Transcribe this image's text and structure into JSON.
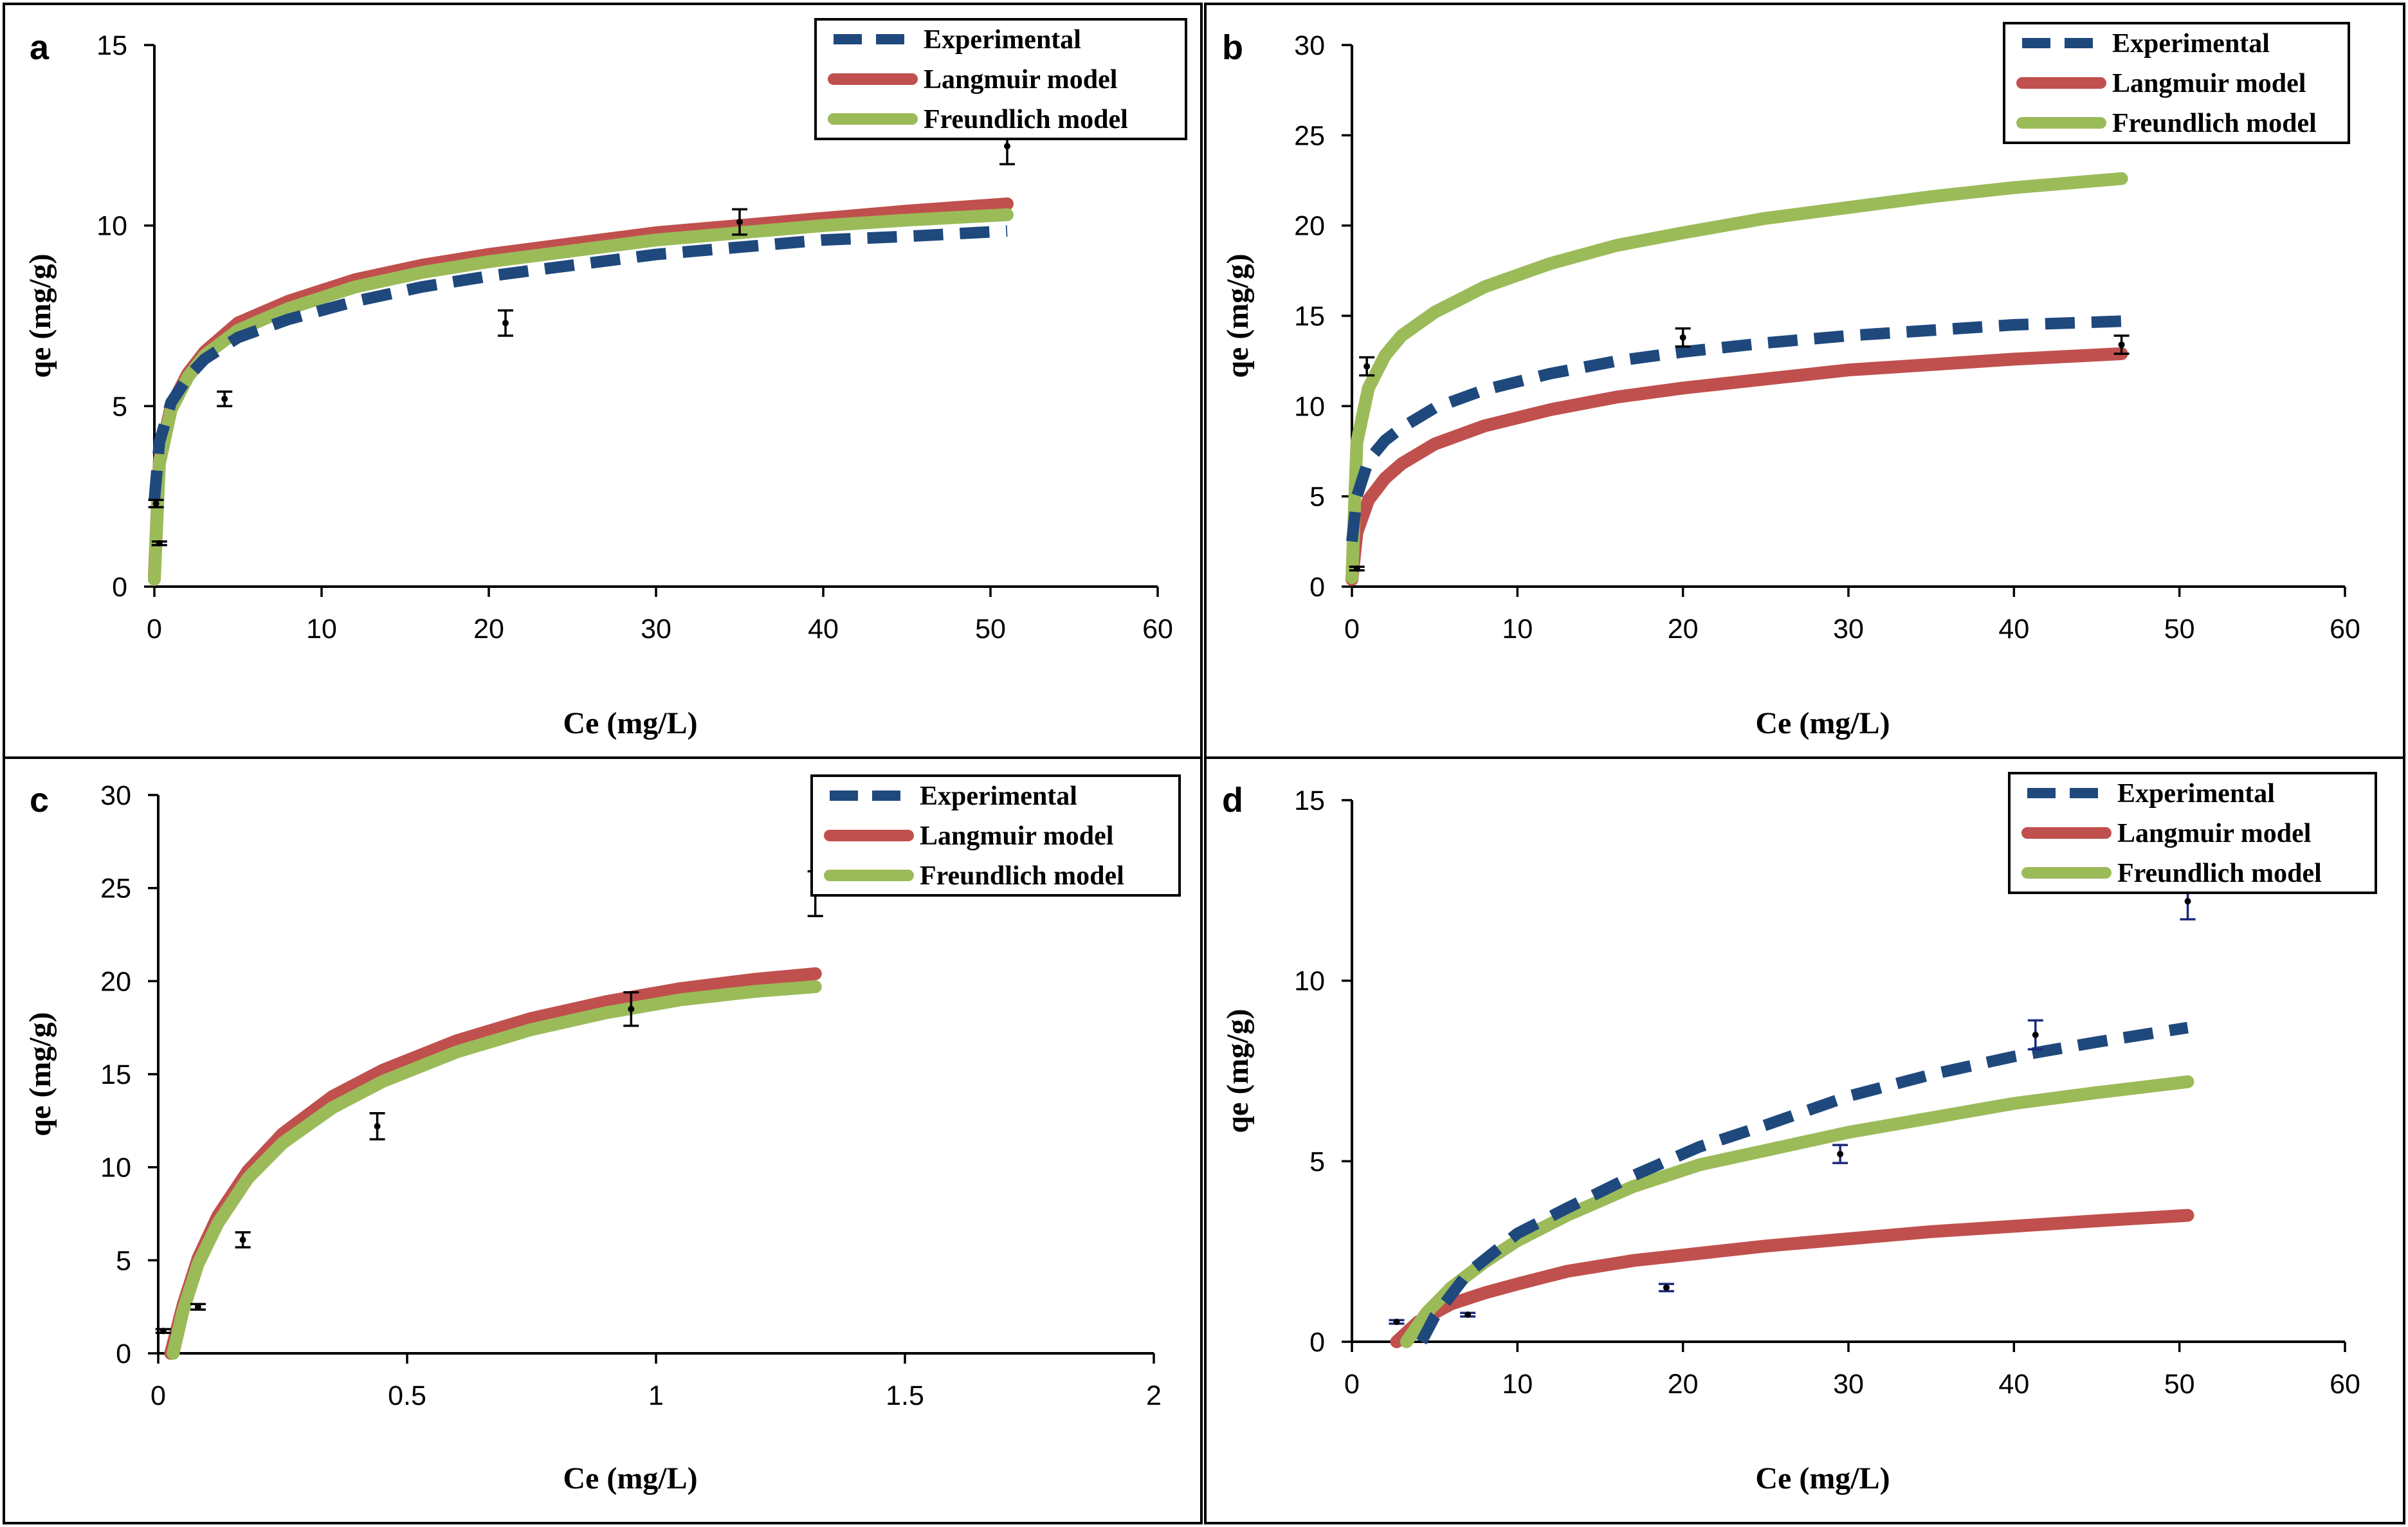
{
  "legend": {
    "experimental": "Experimental",
    "langmuir": "Langmuir model",
    "freundlich": "Freundlich model"
  },
  "colors": {
    "experimental": "#1f497d",
    "langmuir": "#c0504d",
    "freundlich": "#9bbb59",
    "points": "#000000"
  },
  "chart_data": [
    {
      "id": "a",
      "type": "line",
      "panel_label": "a",
      "xlabel": "Ce (mg/L)",
      "ylabel": "qe (mg/g)",
      "xlim": [
        0,
        60
      ],
      "ylim": [
        0,
        15
      ],
      "xticks": [
        0,
        10,
        20,
        30,
        40,
        50,
        60
      ],
      "yticks": [
        0,
        5,
        10,
        15
      ],
      "legend_position": "top-right",
      "series": [
        {
          "key": "experimental",
          "name": "Experimental",
          "style": "dashed",
          "x": [
            0,
            0.3,
            1,
            2,
            3,
            5,
            8,
            12,
            16,
            20,
            25,
            30,
            35,
            40,
            45,
            51
          ],
          "y": [
            2.4,
            4.0,
            5.1,
            5.8,
            6.3,
            6.9,
            7.4,
            7.9,
            8.3,
            8.6,
            8.9,
            9.2,
            9.4,
            9.6,
            9.7,
            9.85
          ]
        },
        {
          "key": "langmuir",
          "name": "Langmuir model",
          "style": "solid",
          "x": [
            0,
            0.3,
            1,
            2,
            3,
            5,
            8,
            12,
            16,
            20,
            25,
            30,
            35,
            40,
            45,
            51
          ],
          "y": [
            0.3,
            3.5,
            5.0,
            5.9,
            6.5,
            7.3,
            7.9,
            8.5,
            8.9,
            9.2,
            9.5,
            9.8,
            10.0,
            10.2,
            10.4,
            10.6
          ]
        },
        {
          "key": "freundlich",
          "name": "Freundlich model",
          "style": "solid",
          "x": [
            0,
            0.3,
            1,
            2,
            3,
            5,
            8,
            12,
            16,
            20,
            25,
            30,
            35,
            40,
            45,
            51
          ],
          "y": [
            0.2,
            3.4,
            4.9,
            5.8,
            6.4,
            7.1,
            7.7,
            8.3,
            8.7,
            9.0,
            9.3,
            9.6,
            9.8,
            10.0,
            10.15,
            10.3
          ]
        }
      ],
      "points": [
        {
          "x": 0.1,
          "y": 2.3,
          "err": 0.1
        },
        {
          "x": 0.3,
          "y": 1.2,
          "err": 0.05
        },
        {
          "x": 4.2,
          "y": 5.2,
          "err": 0.2
        },
        {
          "x": 21,
          "y": 7.3,
          "err": 0.35
        },
        {
          "x": 35,
          "y": 10.1,
          "err": 0.35
        },
        {
          "x": 51,
          "y": 12.2,
          "err": 0.5
        }
      ]
    },
    {
      "id": "b",
      "type": "line",
      "panel_label": "b",
      "xlabel": "Ce (mg/L)",
      "ylabel": "qe (mg/g)",
      "xlim": [
        0,
        60
      ],
      "ylim": [
        0,
        30
      ],
      "xticks": [
        0,
        10,
        20,
        30,
        40,
        50,
        60
      ],
      "yticks": [
        0,
        5,
        10,
        15,
        20,
        25,
        30
      ],
      "legend_position": "top-right",
      "series": [
        {
          "key": "experimental",
          "name": "Experimental",
          "style": "dashed",
          "x": [
            0,
            0.3,
            1,
            2,
            3,
            5,
            8,
            12,
            16,
            20,
            25,
            30,
            35,
            40,
            46.5
          ],
          "y": [
            2.5,
            5.0,
            7.0,
            8.1,
            8.8,
            9.9,
            10.9,
            11.8,
            12.5,
            13.0,
            13.5,
            13.9,
            14.2,
            14.5,
            14.7
          ]
        },
        {
          "key": "langmuir",
          "name": "Langmuir model",
          "style": "solid",
          "x": [
            0,
            0.3,
            1,
            2,
            3,
            5,
            8,
            12,
            16,
            20,
            25,
            30,
            35,
            40,
            46.5
          ],
          "y": [
            0.4,
            3.0,
            4.8,
            6.0,
            6.8,
            7.9,
            8.9,
            9.8,
            10.5,
            11.0,
            11.5,
            12.0,
            12.3,
            12.6,
            12.9
          ]
        },
        {
          "key": "freundlich",
          "name": "Freundlich model",
          "style": "solid",
          "x": [
            0,
            0.3,
            1,
            2,
            3,
            5,
            8,
            12,
            16,
            20,
            25,
            30,
            35,
            40,
            46.5
          ],
          "y": [
            0.5,
            8.0,
            11.0,
            12.8,
            13.9,
            15.2,
            16.6,
            17.9,
            18.9,
            19.6,
            20.4,
            21.0,
            21.6,
            22.1,
            22.6
          ]
        }
      ],
      "points": [
        {
          "x": 0.3,
          "y": 1.0,
          "err": 0.1
        },
        {
          "x": 0.9,
          "y": 12.2,
          "err": 0.5
        },
        {
          "x": 20,
          "y": 13.8,
          "err": 0.5
        },
        {
          "x": 46.5,
          "y": 13.4,
          "err": 0.5
        }
      ]
    },
    {
      "id": "c",
      "type": "line",
      "panel_label": "c",
      "xlabel": "Ce (mg/L)",
      "ylabel": "qe (mg/g)",
      "xlim": [
        0,
        2
      ],
      "ylim": [
        0,
        30
      ],
      "xticks": [
        0,
        0.5,
        1,
        1.5,
        2
      ],
      "yticks": [
        0,
        5,
        10,
        15,
        20,
        25,
        30
      ],
      "legend_position": "top-right",
      "series": [
        {
          "key": "langmuir",
          "name": "Langmuir model",
          "style": "solid",
          "x": [
            0.025,
            0.05,
            0.08,
            0.12,
            0.18,
            0.25,
            0.35,
            0.45,
            0.6,
            0.75,
            0.9,
            1.05,
            1.2,
            1.32
          ],
          "y": [
            0,
            2.6,
            5.1,
            7.4,
            9.8,
            11.8,
            13.8,
            15.2,
            16.8,
            18.0,
            18.9,
            19.6,
            20.1,
            20.4
          ]
        },
        {
          "key": "freundlich",
          "name": "Freundlich model",
          "style": "solid",
          "x": [
            0.03,
            0.05,
            0.08,
            0.12,
            0.18,
            0.25,
            0.35,
            0.45,
            0.6,
            0.75,
            0.9,
            1.05,
            1.2,
            1.32
          ],
          "y": [
            0,
            2.3,
            4.8,
            7.0,
            9.4,
            11.3,
            13.2,
            14.6,
            16.2,
            17.4,
            18.3,
            19.0,
            19.45,
            19.7
          ]
        }
      ],
      "points": [
        {
          "x": 0.01,
          "y": 1.2,
          "err": 0.1
        },
        {
          "x": 0.08,
          "y": 2.5,
          "err": 0.15
        },
        {
          "x": 0.17,
          "y": 6.1,
          "err": 0.4
        },
        {
          "x": 0.44,
          "y": 12.2,
          "err": 0.7
        },
        {
          "x": 0.95,
          "y": 18.5,
          "err": 0.9
        },
        {
          "x": 1.32,
          "y": 24.7,
          "err": 1.2
        }
      ]
    },
    {
      "id": "d",
      "type": "line",
      "panel_label": "d",
      "xlabel": "Ce (mg/L)",
      "ylabel": "qe (mg/g)",
      "xlim": [
        0,
        60
      ],
      "ylim": [
        0,
        15
      ],
      "xticks": [
        0,
        10,
        20,
        30,
        40,
        50,
        60
      ],
      "yticks": [
        0,
        5,
        10,
        15
      ],
      "legend_position": "top-right",
      "series": [
        {
          "key": "experimental",
          "name": "Experimental",
          "style": "dashed",
          "x": [
            4.2,
            5,
            7,
            10,
            13,
            17,
            21,
            25,
            30,
            35,
            40,
            45,
            50.5
          ],
          "y": [
            0,
            0.7,
            1.9,
            3.0,
            3.7,
            4.6,
            5.4,
            6.0,
            6.8,
            7.4,
            7.9,
            8.3,
            8.7
          ]
        },
        {
          "key": "langmuir",
          "name": "Langmuir model",
          "style": "solid",
          "x": [
            2.7,
            4,
            6,
            8,
            10,
            13,
            17,
            21,
            25,
            30,
            35,
            40,
            45,
            50.5
          ],
          "y": [
            0,
            0.55,
            1.05,
            1.35,
            1.6,
            1.95,
            2.25,
            2.45,
            2.65,
            2.85,
            3.05,
            3.2,
            3.35,
            3.5
          ]
        },
        {
          "key": "freundlich",
          "name": "Freundlich model",
          "style": "solid",
          "x": [
            3.3,
            4.5,
            6,
            8,
            10,
            13,
            17,
            21,
            25,
            30,
            35,
            40,
            45,
            50.5
          ],
          "y": [
            0,
            0.8,
            1.5,
            2.2,
            2.8,
            3.5,
            4.3,
            4.9,
            5.3,
            5.8,
            6.2,
            6.6,
            6.9,
            7.2
          ]
        }
      ],
      "points": [
        {
          "x": 2.7,
          "y": 0.55,
          "err": 0.05
        },
        {
          "x": 7,
          "y": 0.75,
          "err": 0.05
        },
        {
          "x": 19,
          "y": 1.5,
          "err": 0.1
        },
        {
          "x": 29.5,
          "y": 5.2,
          "err": 0.25
        },
        {
          "x": 41.3,
          "y": 8.5,
          "err": 0.4
        },
        {
          "x": 50.5,
          "y": 12.2,
          "err": 0.5
        }
      ]
    }
  ]
}
